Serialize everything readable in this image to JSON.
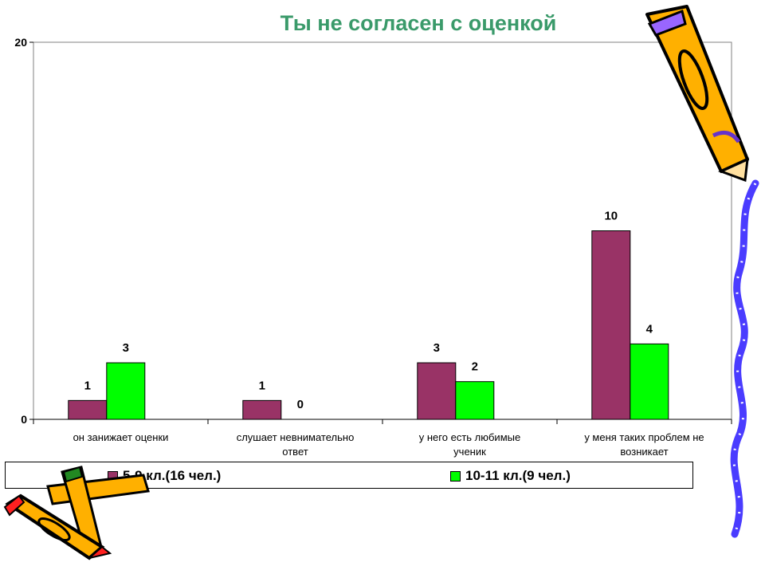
{
  "chart_data": {
    "type": "bar",
    "title": "Ты не согласен с оценкой",
    "categories": [
      [
        "он занижает оценки"
      ],
      [
        "слушает невнимательно",
        "ответ"
      ],
      [
        "у него есть любимые",
        "ученик"
      ],
      [
        "у меня таких проблем не",
        "возникает"
      ]
    ],
    "series": [
      {
        "name": "5-9 кл.(16 чел.)",
        "color": "#993366",
        "values": [
          1,
          1,
          3,
          10
        ]
      },
      {
        "name": "10-11 кл.(9 чел.)",
        "color": "#00ff00",
        "values": [
          3,
          0,
          2,
          4
        ]
      }
    ],
    "ylim": [
      0,
      20
    ],
    "yticks": [
      "0",
      "20"
    ],
    "grid": false,
    "legend_position": "bottom"
  }
}
